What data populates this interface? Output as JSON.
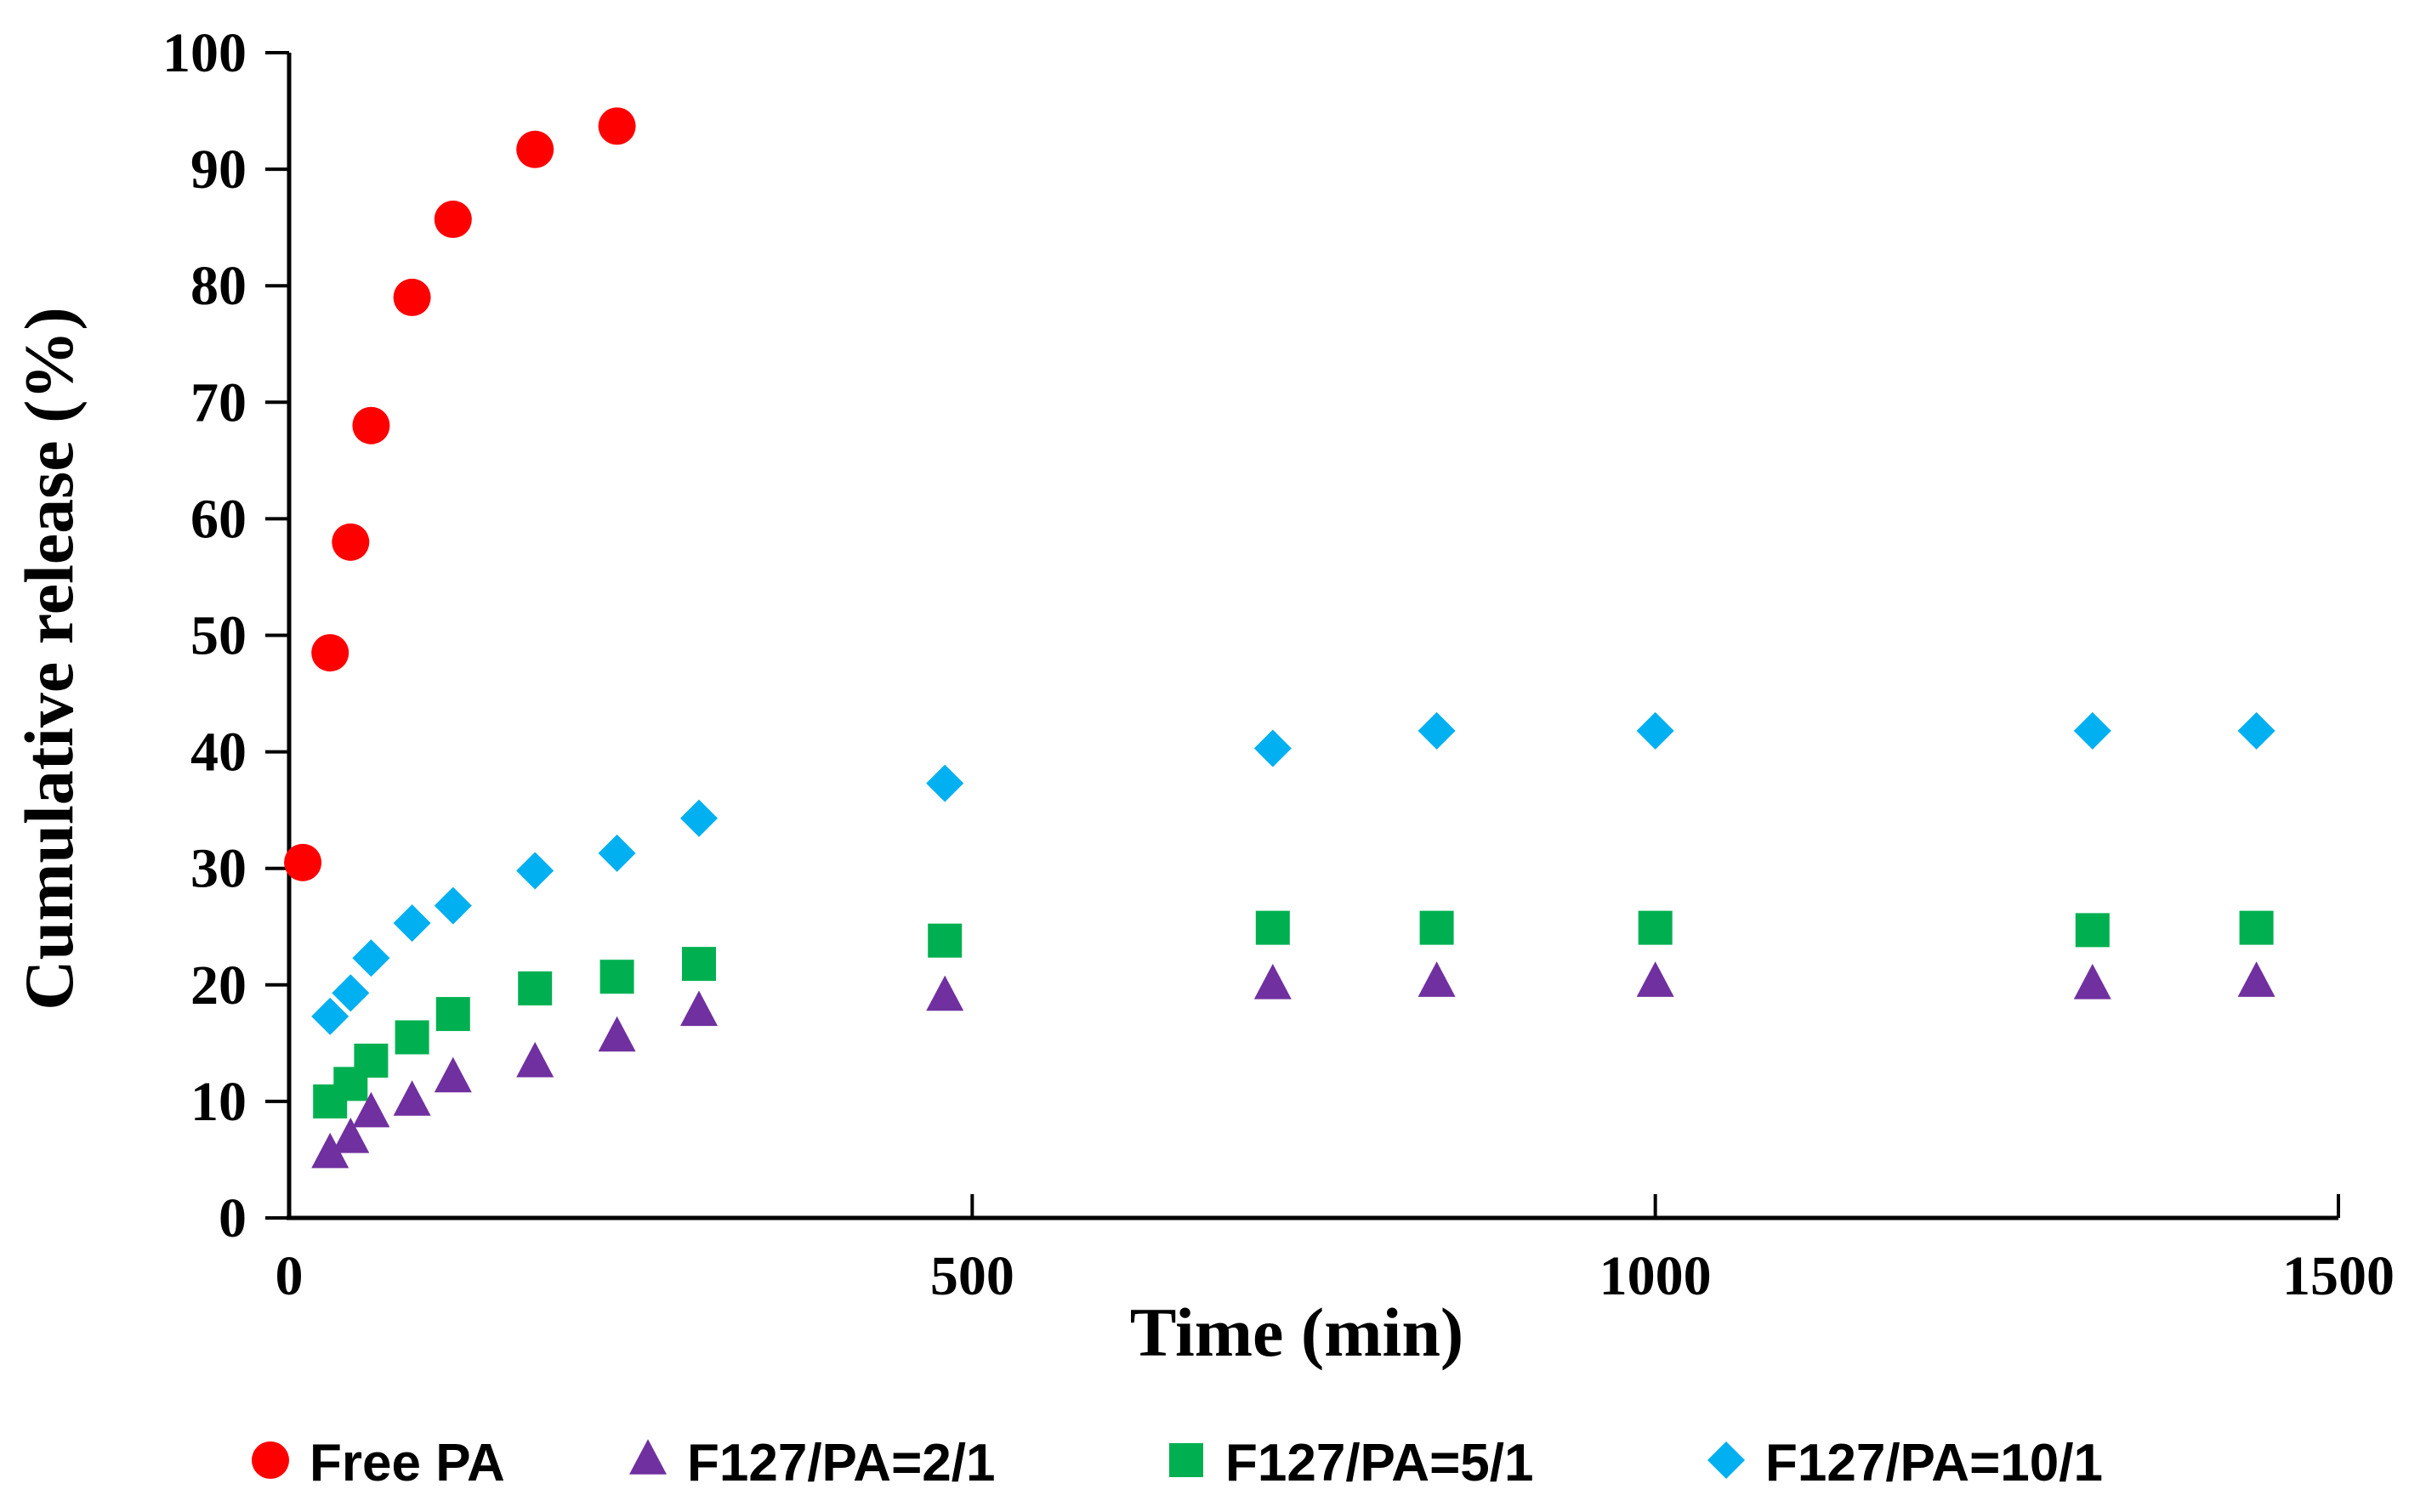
{
  "chart_data": {
    "type": "scatter",
    "title": "",
    "xlabel": "Time (min)",
    "ylabel": "Cumulative release (%)",
    "xlim": [
      0,
      1500
    ],
    "ylim": [
      0,
      100
    ],
    "xticks": [
      0,
      500,
      1000,
      1500
    ],
    "yticks": [
      0,
      10,
      20,
      30,
      40,
      50,
      60,
      70,
      80,
      90,
      100
    ],
    "grid": false,
    "legend_position": "bottom",
    "series": [
      {
        "name": "Free PA",
        "marker": "circle",
        "color": "#ff0000",
        "x": [
          10,
          30,
          45,
          60,
          90,
          120,
          180,
          240
        ],
        "y": [
          30.5,
          48.5,
          58,
          68,
          79,
          85.7,
          91.7,
          93.7
        ]
      },
      {
        "name": "F127/PA=2/1",
        "marker": "triangle",
        "color": "#7030a0",
        "x": [
          30,
          45,
          60,
          90,
          120,
          180,
          240,
          300,
          480,
          720,
          840,
          1000,
          1320,
          1440
        ],
        "y": [
          5.5,
          6.8,
          9,
          10,
          12,
          13.3,
          15.5,
          17.7,
          19,
          20,
          20.2,
          20.2,
          20,
          20.2
        ]
      },
      {
        "name": "F127/PA=5/1",
        "marker": "square",
        "color": "#00b050",
        "x": [
          30,
          45,
          60,
          90,
          120,
          180,
          240,
          300,
          480,
          720,
          840,
          1000,
          1320,
          1440
        ],
        "y": [
          10,
          11.5,
          13.5,
          15.5,
          17.5,
          19.7,
          20.7,
          21.8,
          23.8,
          24.9,
          24.9,
          24.9,
          24.7,
          24.9
        ]
      },
      {
        "name": "F127/PA=10/1",
        "marker": "diamond",
        "color": "#00b0f0",
        "x": [
          30,
          45,
          60,
          90,
          120,
          180,
          240,
          300,
          480,
          720,
          840,
          1000,
          1320,
          1440
        ],
        "y": [
          17.3,
          19.3,
          22.3,
          25.3,
          26.8,
          29.8,
          31.3,
          34.3,
          37.3,
          40.3,
          41.8,
          41.8,
          41.8,
          41.8
        ]
      }
    ]
  }
}
